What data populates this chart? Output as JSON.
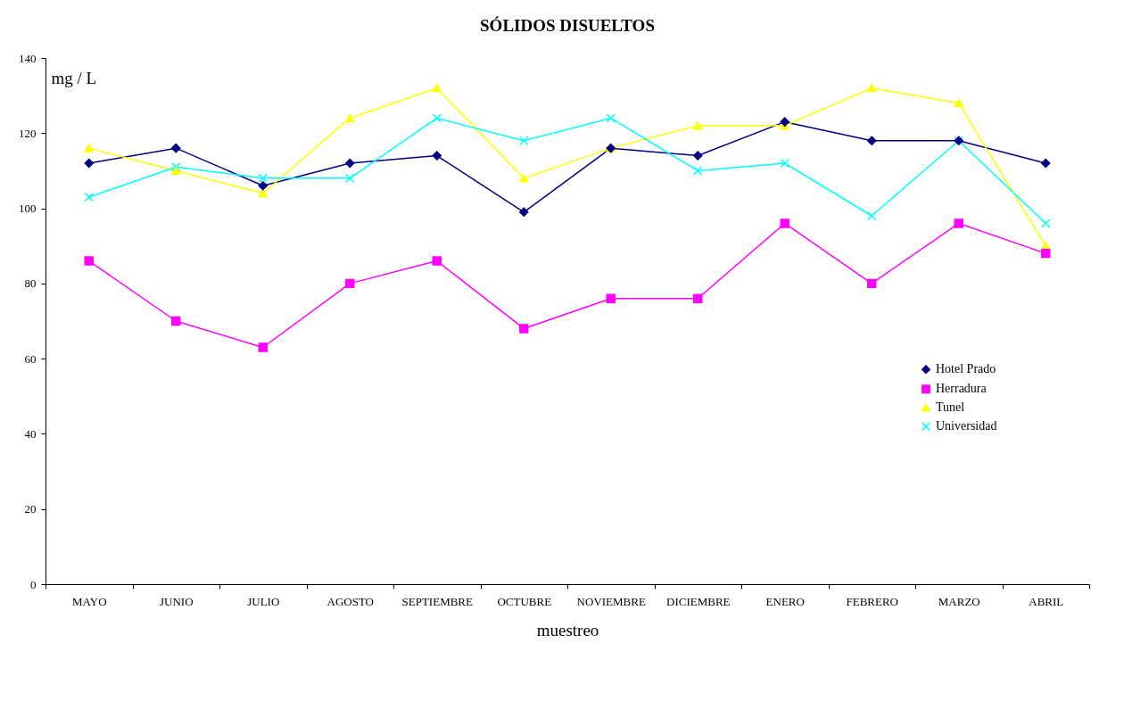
{
  "chart_data": {
    "type": "line",
    "title": "SÓLIDOS DISUELTOS",
    "xlabel": "muestreo",
    "ylabel": "mg / L",
    "categories": [
      "MAYO",
      "JUNIO",
      "JULIO",
      "AGOSTO",
      "SEPTIEMBRE",
      "OCTUBRE",
      "NOVIEMBRE",
      "DICIEMBRE",
      "ENERO",
      "FEBRERO",
      "MARZO",
      "ABRIL"
    ],
    "series": [
      {
        "name": "Hotel Prado",
        "color": "#000080",
        "marker": "diamond",
        "values": [
          112,
          116,
          106,
          112,
          114,
          99,
          116,
          114,
          123,
          118,
          118,
          112
        ]
      },
      {
        "name": "Herradura",
        "color": "#ff00ff",
        "marker": "square",
        "values": [
          86,
          70,
          63,
          80,
          86,
          68,
          76,
          76,
          96,
          80,
          96,
          88
        ]
      },
      {
        "name": "Tunel",
        "color": "#ffff00",
        "marker": "triangle",
        "values": [
          116,
          110,
          104,
          124,
          132,
          108,
          116,
          122,
          122,
          132,
          128,
          90
        ]
      },
      {
        "name": "Universidad",
        "color": "#00ffff",
        "marker": "cross",
        "values": [
          103,
          111,
          108,
          108,
          124,
          118,
          124,
          110,
          112,
          98,
          118,
          96
        ]
      }
    ],
    "ylim": [
      0,
      140
    ],
    "yticks": [
      0,
      20,
      40,
      60,
      80,
      100,
      120,
      140
    ],
    "grid": false,
    "legend": "right"
  }
}
